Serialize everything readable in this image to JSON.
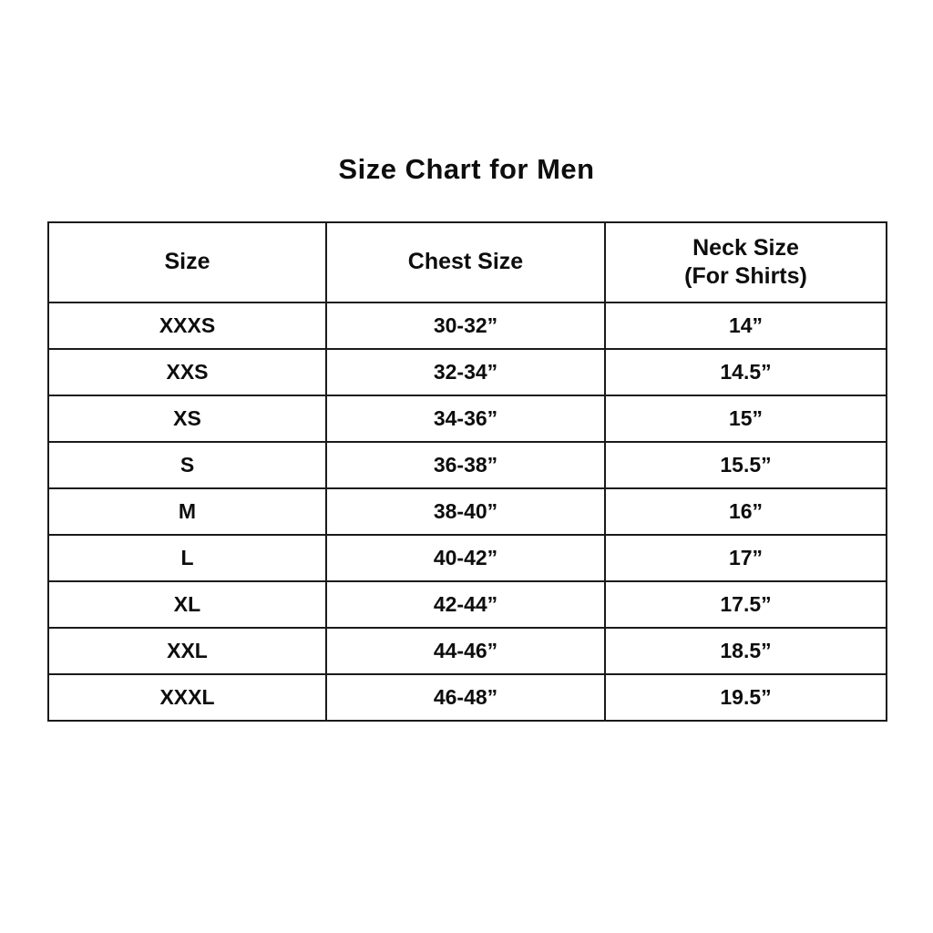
{
  "page": {
    "title": "Size Chart for Men"
  },
  "table": {
    "headers": {
      "size": "Size",
      "chest": "Chest Size",
      "neck_line1": "Neck Size",
      "neck_line2": "(For Shirts)"
    },
    "rows": [
      {
        "size": "XXXS",
        "chest": "30-32”",
        "neck": "14”"
      },
      {
        "size": "XXS",
        "chest": "32-34”",
        "neck": "14.5”"
      },
      {
        "size": "XS",
        "chest": "34-36”",
        "neck": "15”"
      },
      {
        "size": "S",
        "chest": "36-38”",
        "neck": "15.5”"
      },
      {
        "size": "M",
        "chest": "38-40”",
        "neck": "16”"
      },
      {
        "size": "L",
        "chest": "40-42”",
        "neck": "17”"
      },
      {
        "size": "XL",
        "chest": "42-44”",
        "neck": "17.5”"
      },
      {
        "size": "XXL",
        "chest": "44-46”",
        "neck": "18.5”"
      },
      {
        "size": "XXXL",
        "chest": "46-48”",
        "neck": "19.5”"
      }
    ]
  },
  "chart_data": {
    "type": "table",
    "title": "Size Chart for Men",
    "columns": [
      "Size",
      "Chest Size",
      "Neck Size (For Shirts)"
    ],
    "rows": [
      [
        "XXXS",
        "30-32”",
        "14”"
      ],
      [
        "XXS",
        "32-34”",
        "14.5”"
      ],
      [
        "XS",
        "34-36”",
        "15”"
      ],
      [
        "S",
        "36-38”",
        "15.5”"
      ],
      [
        "M",
        "38-40”",
        "16”"
      ],
      [
        "L",
        "40-42”",
        "17”"
      ],
      [
        "XL",
        "42-44”",
        "17.5”"
      ],
      [
        "XXL",
        "44-46”",
        "18.5”"
      ],
      [
        "XXXL",
        "46-48”",
        "19.5”"
      ]
    ],
    "colors": {
      "background": "#ffffff",
      "text": "#0d0d0d",
      "border": "#1a1a1a"
    }
  }
}
